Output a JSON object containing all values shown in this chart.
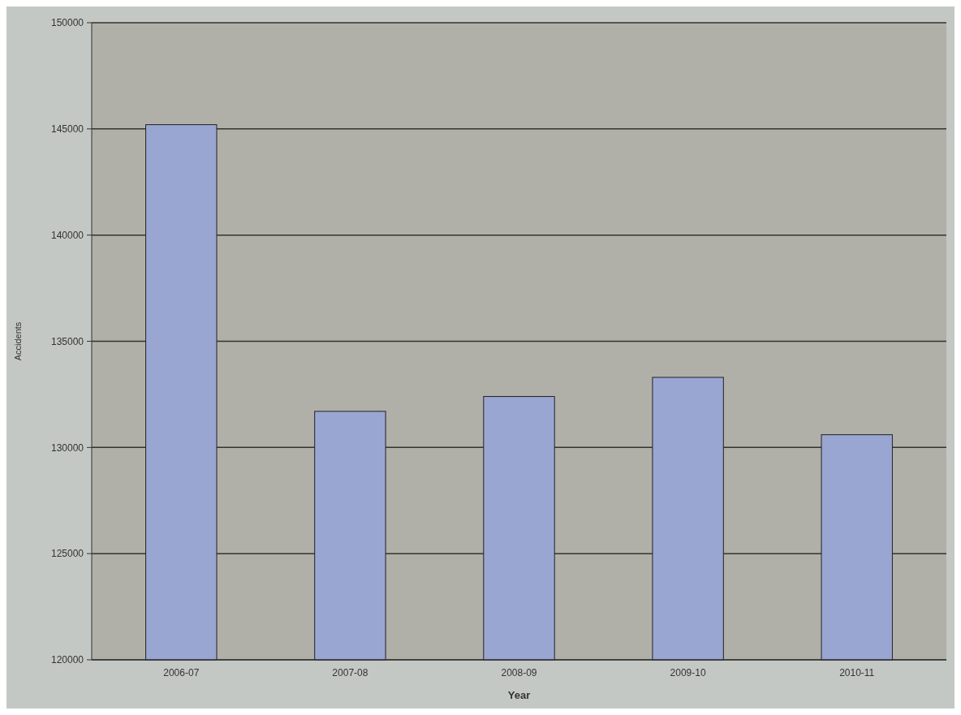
{
  "chart_data": {
    "type": "bar",
    "xlabel": "Year",
    "ylabel": "Accidents",
    "categories": [
      "2006-07",
      "2007-08",
      "2008-09",
      "2009-10",
      "2010-11"
    ],
    "values": [
      145200,
      131700,
      132400,
      133300,
      130600
    ],
    "color": "#9aa6d2",
    "ylim": [
      120000,
      150000
    ],
    "yticks": [
      120000,
      125000,
      130000,
      135000,
      140000,
      145000,
      150000
    ],
    "grid": "y"
  }
}
